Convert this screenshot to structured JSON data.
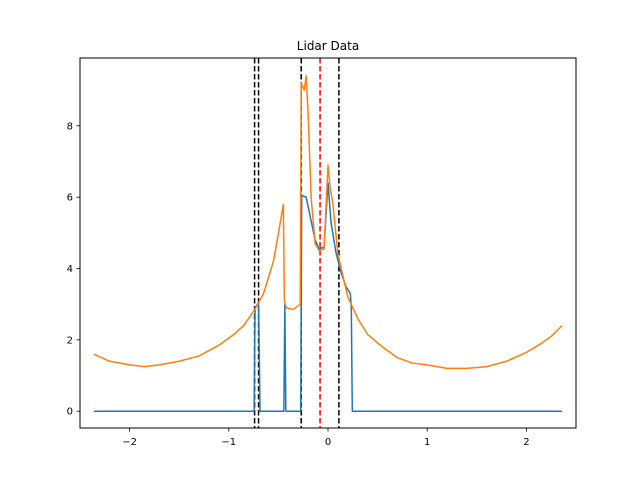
{
  "chart_data": {
    "type": "line",
    "title": "Lidar Data",
    "xlabel": "",
    "ylabel": "",
    "xlim": [
      -2.5,
      2.5
    ],
    "ylim": [
      -0.47,
      9.9
    ],
    "grid": false,
    "xticks": [
      -2,
      -1,
      0,
      1,
      2
    ],
    "yticks": [
      0,
      2,
      4,
      6,
      8
    ],
    "xtick_labels": [
      "−2",
      "−1",
      "0",
      "1",
      "2"
    ],
    "ytick_labels": [
      "0",
      "2",
      "4",
      "6",
      "8"
    ],
    "series": [
      {
        "color": "#1f77b4",
        "x": [
          -2.36,
          -0.745,
          -0.735,
          -0.7,
          -0.685,
          -0.445,
          -0.435,
          -0.425,
          -0.275,
          -0.265,
          -0.22,
          -0.13,
          -0.09,
          -0.04,
          0.0,
          0.03,
          0.08,
          0.13,
          0.18,
          0.225,
          0.235,
          0.245,
          0.26,
          2.36
        ],
        "y": [
          0,
          0,
          2.9,
          3.05,
          0,
          0,
          3.0,
          0,
          0,
          6.05,
          6.0,
          4.8,
          4.55,
          4.6,
          6.4,
          5.3,
          4.45,
          3.9,
          3.5,
          3.3,
          2.9,
          0,
          0,
          0
        ]
      },
      {
        "color": "#ff7f0e",
        "x": [
          -2.36,
          -2.2,
          -2.0,
          -1.85,
          -1.7,
          -1.5,
          -1.3,
          -1.1,
          -0.95,
          -0.85,
          -0.75,
          -0.65,
          -0.55,
          -0.48,
          -0.45,
          -0.44,
          -0.42,
          -0.35,
          -0.28,
          -0.27,
          -0.24,
          -0.22,
          -0.2,
          -0.17,
          -0.13,
          -0.09,
          -0.04,
          0.0,
          0.02,
          0.05,
          0.1,
          0.15,
          0.2,
          0.3,
          0.4,
          0.55,
          0.7,
          0.85,
          1.0,
          1.2,
          1.4,
          1.6,
          1.8,
          2.0,
          2.15,
          2.25,
          2.36
        ],
        "y": [
          1.6,
          1.4,
          1.3,
          1.25,
          1.3,
          1.4,
          1.55,
          1.85,
          2.15,
          2.4,
          2.8,
          3.3,
          4.2,
          5.3,
          5.8,
          3.1,
          2.9,
          2.85,
          3.0,
          9.2,
          9.0,
          9.4,
          8.3,
          6.0,
          4.7,
          4.5,
          4.55,
          6.9,
          6.3,
          5.8,
          4.4,
          3.8,
          3.2,
          2.6,
          2.15,
          1.8,
          1.5,
          1.35,
          1.3,
          1.2,
          1.2,
          1.25,
          1.4,
          1.65,
          1.9,
          2.1,
          2.4
        ]
      }
    ],
    "vlines": [
      {
        "x": -0.74,
        "color": "#000000"
      },
      {
        "x": -0.7,
        "color": "#000000"
      },
      {
        "x": -0.27,
        "color": "#000000"
      },
      {
        "x": -0.08,
        "color": "#ff0000"
      },
      {
        "x": 0.11,
        "color": "#000000"
      }
    ]
  }
}
